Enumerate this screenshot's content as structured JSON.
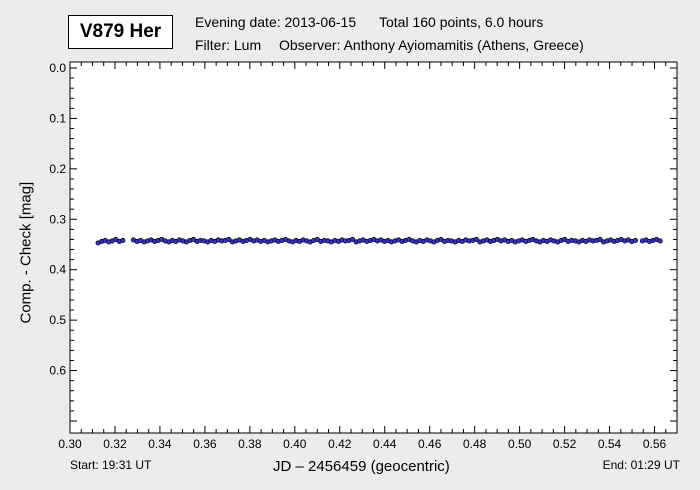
{
  "header": {
    "star_name": "V879 Her",
    "evening_date": "Evening date: 2013-06-15",
    "total": "Total 160 points, 6.0 hours",
    "filter": "Filter: Lum",
    "observer": "Observer: Anthony Ayiomamitis (Athens, Greece)"
  },
  "footer": {
    "start": "Start: 19:31 UT",
    "end": "End: 01:29 UT"
  },
  "colors": {
    "marker_fill": "#3535c8",
    "marker_stroke": "#000000",
    "background": "#ececec",
    "plot_background": "#ffffff"
  },
  "chart_data": {
    "type": "scatter",
    "xlabel": "JD – 2456459  (geocentric)",
    "ylabel": "Comp. - Check [mag]",
    "xlim": [
      0.3,
      0.57
    ],
    "ylim": [
      0.0,
      0.7
    ],
    "y_inverted": true,
    "grid": false,
    "x_ticks": [
      "0.30",
      "0.32",
      "0.34",
      "0.36",
      "0.38",
      "0.40",
      "0.42",
      "0.44",
      "0.46",
      "0.48",
      "0.50",
      "0.52",
      "0.54",
      "0.56"
    ],
    "y_ticks": [
      "0.0",
      "0.1",
      "0.2",
      "0.3",
      "0.4",
      "0.5",
      "0.6"
    ],
    "series": [
      {
        "x_start": 0.3125,
        "x_end": 0.5625,
        "count": 160,
        "values": [
          0.347,
          0.344,
          0.342,
          0.345,
          0.343,
          0.34,
          0.344,
          0.342,
          0.34,
          0.343,
          0.341,
          0.344,
          0.342,
          0.345,
          0.343,
          0.341,
          0.344,
          0.342,
          0.34,
          0.343,
          0.345,
          0.342,
          0.344,
          0.341,
          0.343,
          0.345,
          0.342,
          0.34,
          0.344,
          0.342,
          0.343,
          0.345,
          0.342,
          0.344,
          0.341,
          0.343,
          0.342,
          0.34,
          0.345,
          0.343,
          0.341,
          0.344,
          0.342,
          0.34,
          0.343,
          0.341,
          0.344,
          0.342,
          0.345,
          0.343,
          0.341,
          0.344,
          0.342,
          0.34,
          0.343,
          0.345,
          0.342,
          0.344,
          0.341,
          0.343,
          0.345,
          0.342,
          0.34,
          0.344,
          0.342,
          0.343,
          0.345,
          0.342,
          0.344,
          0.341,
          0.343,
          0.342,
          0.34,
          0.345,
          0.343,
          0.341,
          0.344,
          0.342,
          0.34,
          0.343,
          0.341,
          0.344,
          0.342,
          0.345,
          0.343,
          0.341,
          0.344,
          0.342,
          0.34,
          0.343,
          0.345,
          0.342,
          0.344,
          0.341,
          0.343,
          0.345,
          0.342,
          0.34,
          0.344,
          0.342,
          0.343,
          0.345,
          0.342,
          0.344,
          0.341,
          0.343,
          0.342,
          0.34,
          0.345,
          0.343,
          0.341,
          0.344,
          0.342,
          0.34,
          0.343,
          0.341,
          0.344,
          0.342,
          0.345,
          0.343,
          0.341,
          0.344,
          0.342,
          0.34,
          0.343,
          0.345,
          0.342,
          0.344,
          0.341,
          0.343,
          0.345,
          0.342,
          0.34,
          0.344,
          0.342,
          0.343,
          0.345,
          0.342,
          0.344,
          0.341,
          0.343,
          0.342,
          0.34,
          0.345,
          0.343,
          0.341,
          0.344,
          0.342,
          0.34,
          0.343,
          0.341,
          0.344,
          0.342,
          0.345,
          0.343,
          0.341,
          0.344,
          0.342,
          0.34,
          0.343
        ]
      }
    ]
  }
}
